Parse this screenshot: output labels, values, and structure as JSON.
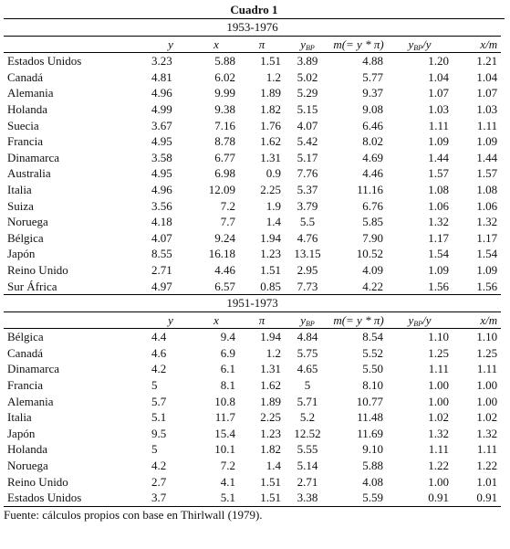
{
  "title": "Cuadro 1",
  "sections": [
    {
      "period": "1953-1976",
      "headers": [
        {
          "main": "y"
        },
        {
          "main": "x"
        },
        {
          "main": "π"
        },
        {
          "main": "y",
          "sub": "BP"
        },
        {
          "main": "m(= y * π)"
        },
        {
          "main": "y",
          "sub": "BP",
          "rest": "/y"
        },
        {
          "main": "x/m"
        }
      ],
      "rows": [
        [
          "Estados Unidos",
          "3.23",
          "5.88",
          "1.51",
          "3.89",
          "4.88",
          "1.20",
          "1.21"
        ],
        [
          "Canadá",
          "4.81",
          "6.02",
          "1.2",
          "5.02",
          "5.77",
          "1.04",
          "1.04"
        ],
        [
          "Alemania",
          "4.96",
          "9.99",
          "1.89",
          "5.29",
          "9.37",
          "1.07",
          "1.07"
        ],
        [
          "Holanda",
          "4.99",
          "9.38",
          "1.82",
          "5.15",
          "9.08",
          "1.03",
          "1.03"
        ],
        [
          "Suecia",
          "3.67",
          "7.16",
          "1.76",
          "4.07",
          "6.46",
          "1.11",
          "1.11"
        ],
        [
          "Francia",
          "4.95",
          "8.78",
          "1.62",
          "5.42",
          "8.02",
          "1.09",
          "1.09"
        ],
        [
          "Dinamarca",
          "3.58",
          "6.77",
          "1.31",
          "5.17",
          "4.69",
          "1.44",
          "1.44"
        ],
        [
          "Australia",
          "4.95",
          "6.98",
          "0.9",
          "7.76",
          "4.46",
          "1.57",
          "1.57"
        ],
        [
          "Italia",
          "4.96",
          "12.09",
          "2.25",
          "5.37",
          "11.16",
          "1.08",
          "1.08"
        ],
        [
          "Suiza",
          "3.56",
          "7.2",
          "1.9",
          "3.79",
          "6.76",
          "1.06",
          "1.06"
        ],
        [
          "Noruega",
          "4.18",
          "7.7",
          "1.4",
          "5.5",
          "5.85",
          "1.32",
          "1.32"
        ],
        [
          "Bélgica",
          "4.07",
          "9.24",
          "1.94",
          "4.76",
          "7.90",
          "1.17",
          "1.17"
        ],
        [
          "Japón",
          "8.55",
          "16.18",
          "1.23",
          "13.15",
          "10.52",
          "1.54",
          "1.54"
        ],
        [
          "Reino Unido",
          "2.71",
          "4.46",
          "1.51",
          "2.95",
          "4.09",
          "1.09",
          "1.09"
        ],
        [
          "Sur África",
          "4.97",
          "6.57",
          "0.85",
          "7.73",
          "4.22",
          "1.56",
          "1.56"
        ]
      ]
    },
    {
      "period": "1951-1973",
      "headers": [
        {
          "main": "y"
        },
        {
          "main": "x"
        },
        {
          "main": "π"
        },
        {
          "main": "y",
          "sub": "BP"
        },
        {
          "main": "m(= y * π)"
        },
        {
          "main": "y",
          "sub": "BP",
          "rest": "/y"
        },
        {
          "main": "x/m"
        }
      ],
      "rows": [
        [
          "Bélgica",
          "4.4",
          "9.4",
          "1.94",
          "4.84",
          "8.54",
          "1.10",
          "1.10"
        ],
        [
          "Canadá",
          "4.6",
          "6.9",
          "1.2",
          "5.75",
          "5.52",
          "1.25",
          "1.25"
        ],
        [
          "Dinamarca",
          "4.2",
          "6.1",
          "1.31",
          "4.65",
          "5.50",
          "1.11",
          "1.11"
        ],
        [
          "Francia",
          "5",
          "8.1",
          "1.62",
          "5",
          "8.10",
          "1.00",
          "1.00"
        ],
        [
          "Alemania",
          "5.7",
          "10.8",
          "1.89",
          "5.71",
          "10.77",
          "1.00",
          "1.00"
        ],
        [
          "Italia",
          "5.1",
          "11.7",
          "2.25",
          "5.2",
          "11.48",
          "1.02",
          "1.02"
        ],
        [
          "Japón",
          "9.5",
          "15.4",
          "1.23",
          "12.52",
          "11.69",
          "1.32",
          "1.32"
        ],
        [
          "Holanda",
          "5",
          "10.1",
          "1.82",
          "5.55",
          "9.10",
          "1.11",
          "1.11"
        ],
        [
          "Noruega",
          "4.2",
          "7.2",
          "1.4",
          "5.14",
          "5.88",
          "1.22",
          "1.22"
        ],
        [
          "Reino Unido",
          "2.7",
          "4.1",
          "1.51",
          "2.71",
          "4.08",
          "1.00",
          "1.01"
        ],
        [
          "Estados Unidos",
          "3.7",
          "5.1",
          "1.51",
          "3.38",
          "5.59",
          "0.91",
          "0.91"
        ]
      ]
    }
  ],
  "footer": "Fuente: cálculos propios con base en Thirlwall (1979)."
}
